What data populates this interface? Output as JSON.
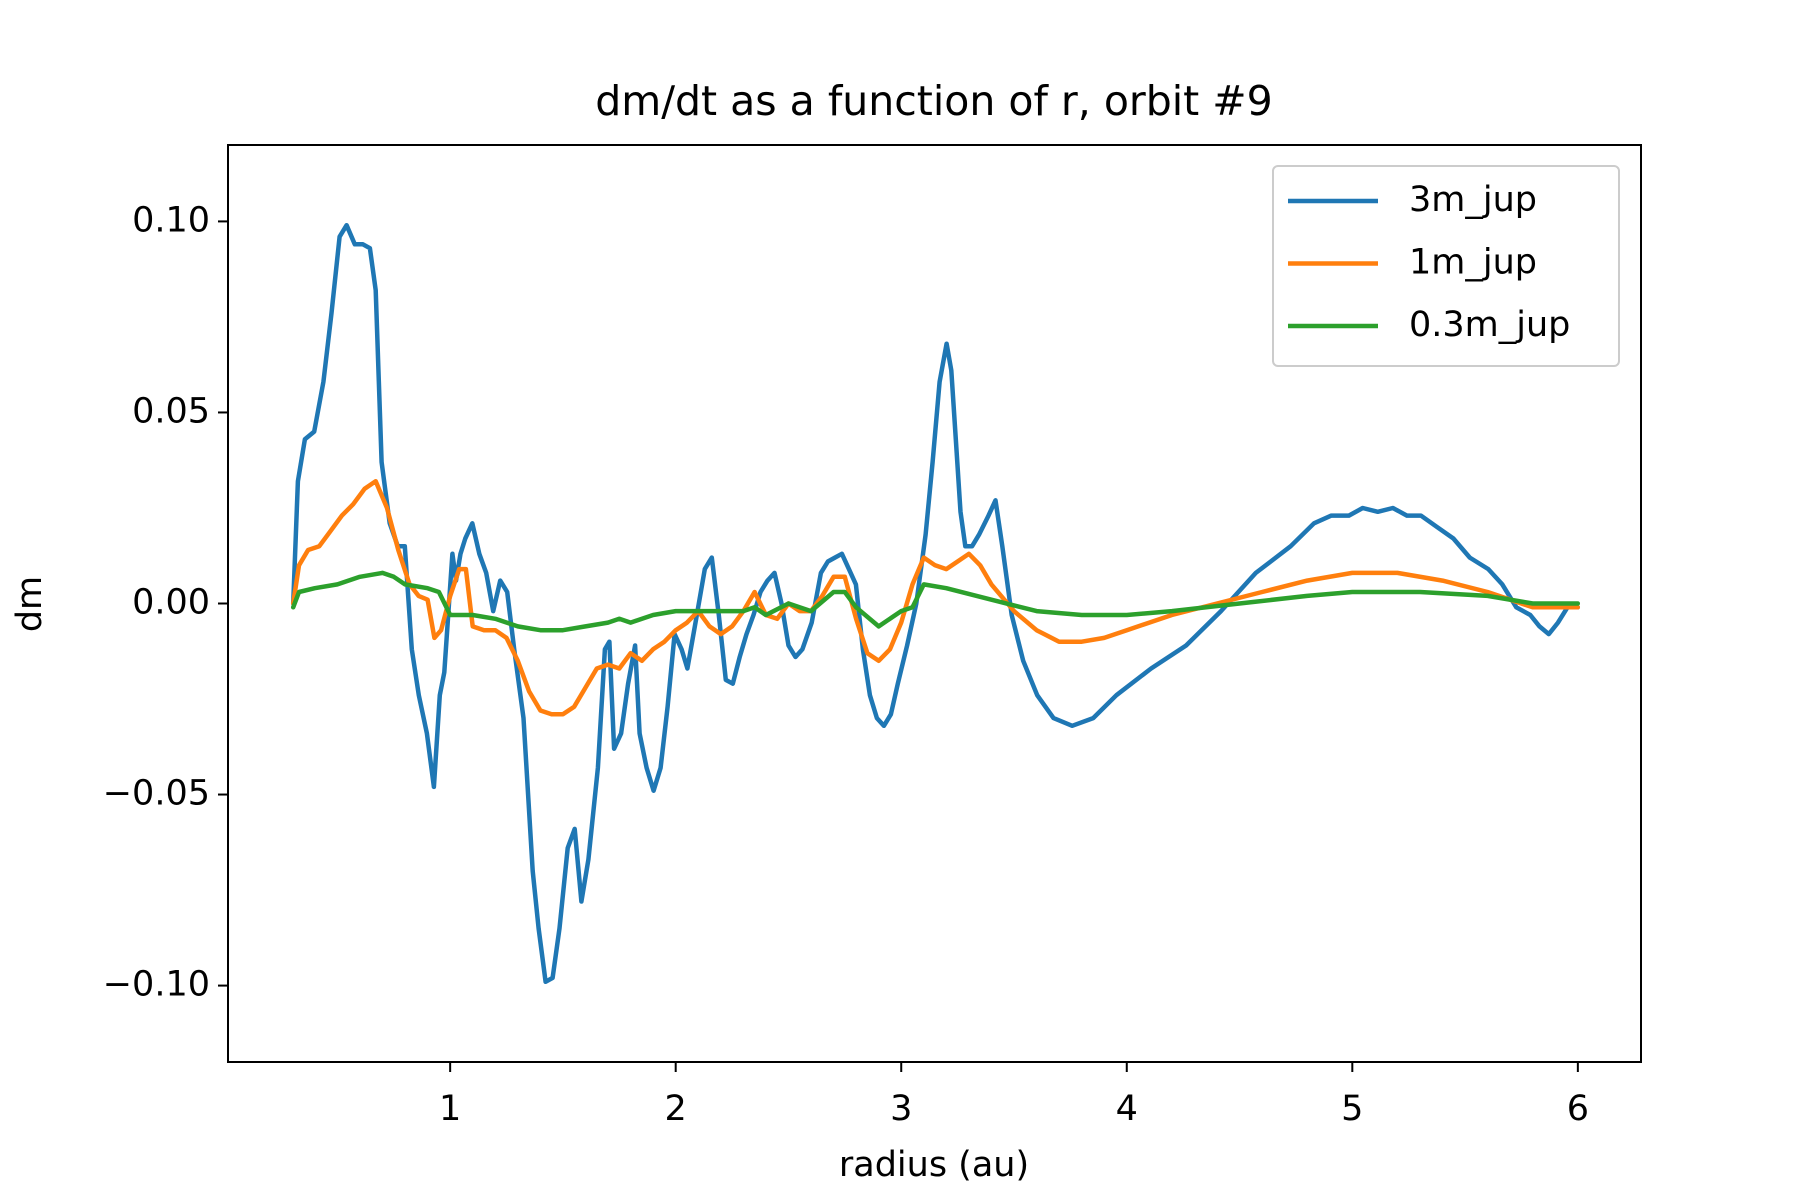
{
  "chart_data": {
    "type": "line",
    "title": "dm/dt as a function of r, orbit #9",
    "x_label": "radius (au)",
    "y_label": "dm",
    "xlim": [
      0.015,
      6.28
    ],
    "ylim": [
      -0.12,
      0.12
    ],
    "xticks": [
      1,
      2,
      3,
      4,
      5,
      6
    ],
    "yticks": [
      {
        "value": -0.1,
        "label": "−0.10"
      },
      {
        "value": -0.05,
        "label": "−0.05"
      },
      {
        "value": 0,
        "label": "0.00"
      },
      {
        "value": 0.05,
        "label": "0.05"
      },
      {
        "value": 0.1,
        "label": "0.10"
      }
    ],
    "legend": "upper right",
    "grid": false,
    "series": [
      {
        "name": "3m_jup",
        "color": "#1f77b4",
        "x": [
          0.304,
          0.325,
          0.356,
          0.397,
          0.438,
          0.474,
          0.51,
          0.541,
          0.577,
          0.613,
          0.644,
          0.67,
          0.696,
          0.732,
          0.768,
          0.799,
          0.83,
          0.861,
          0.897,
          0.928,
          0.954,
          0.974,
          0.995,
          1.01,
          1.026,
          1.046,
          1.067,
          1.098,
          1.129,
          1.16,
          1.191,
          1.222,
          1.253,
          1.284,
          1.325,
          1.366,
          1.392,
          1.423,
          1.454,
          1.485,
          1.521,
          1.552,
          1.582,
          1.613,
          1.655,
          1.686,
          1.706,
          1.727,
          1.758,
          1.789,
          1.82,
          1.84,
          1.871,
          1.902,
          1.933,
          1.964,
          1.995,
          2.026,
          2.052,
          2.088,
          2.129,
          2.16,
          2.191,
          2.222,
          2.253,
          2.284,
          2.314,
          2.345,
          2.376,
          2.407,
          2.438,
          2.469,
          2.5,
          2.531,
          2.562,
          2.603,
          2.644,
          2.675,
          2.706,
          2.737,
          2.768,
          2.799,
          2.83,
          2.861,
          2.892,
          2.923,
          2.954,
          2.985,
          3.026,
          3.067,
          3.108,
          3.139,
          3.17,
          3.201,
          3.222,
          3.242,
          3.263,
          3.284,
          3.314,
          3.345,
          3.387,
          3.418,
          3.448,
          3.49,
          3.541,
          3.603,
          3.675,
          3.758,
          3.851,
          3.954,
          4.108,
          4.263,
          4.418,
          4.572,
          4.727,
          4.83,
          4.907,
          4.985,
          5.046,
          5.113,
          5.18,
          5.242,
          5.304,
          5.376,
          5.448,
          5.521,
          5.603,
          5.665,
          5.727,
          5.789,
          5.83,
          5.871,
          5.912,
          5.954,
          6.0
        ],
        "values": [
          0,
          0.032,
          0.043,
          0.045,
          0.058,
          0.076,
          0.096,
          0.099,
          0.094,
          0.094,
          0.093,
          0.082,
          0.037,
          0.021,
          0.015,
          0.015,
          -0.012,
          -0.024,
          -0.034,
          -0.048,
          -0.024,
          -0.018,
          0,
          0.013,
          0.006,
          0.013,
          0.017,
          0.021,
          0.013,
          0.008,
          -0.002,
          0.006,
          0.003,
          -0.012,
          -0.03,
          -0.07,
          -0.085,
          -0.099,
          -0.098,
          -0.085,
          -0.064,
          -0.059,
          -0.078,
          -0.067,
          -0.043,
          -0.012,
          -0.01,
          -0.038,
          -0.034,
          -0.021,
          -0.011,
          -0.034,
          -0.043,
          -0.049,
          -0.043,
          -0.027,
          -0.008,
          -0.012,
          -0.017,
          -0.005,
          0.009,
          0.012,
          -0.003,
          -0.02,
          -0.021,
          -0.014,
          -0.008,
          -0.003,
          0.003,
          0.006,
          0.008,
          0,
          -0.011,
          -0.014,
          -0.012,
          -0.005,
          0.008,
          0.011,
          0.012,
          0.013,
          0.009,
          0.005,
          -0.012,
          -0.024,
          -0.03,
          -0.032,
          -0.029,
          -0.021,
          -0.011,
          0,
          0.018,
          0.037,
          0.058,
          0.068,
          0.061,
          0.043,
          0.024,
          0.015,
          0.015,
          0.018,
          0.023,
          0.027,
          0.015,
          -0.003,
          -0.015,
          -0.024,
          -0.03,
          -0.032,
          -0.03,
          -0.024,
          -0.017,
          -0.011,
          -0.002,
          0.008,
          0.015,
          0.021,
          0.023,
          0.023,
          0.025,
          0.024,
          0.025,
          0.023,
          0.023,
          0.02,
          0.017,
          0.012,
          0.009,
          0.005,
          -0.001,
          -0.003,
          -0.006,
          -0.008,
          -0.005,
          -0.001,
          -0.001
        ]
      },
      {
        "name": "1m_jup",
        "color": "#ff7f0e",
        "x": [
          0.304,
          0.33,
          0.37,
          0.42,
          0.47,
          0.52,
          0.57,
          0.62,
          0.67,
          0.72,
          0.77,
          0.82,
          0.86,
          0.9,
          0.93,
          0.96,
          1.0,
          1.04,
          1.07,
          1.1,
          1.15,
          1.2,
          1.25,
          1.3,
          1.35,
          1.4,
          1.45,
          1.5,
          1.55,
          1.6,
          1.65,
          1.7,
          1.75,
          1.8,
          1.85,
          1.9,
          1.95,
          2.0,
          2.05,
          2.1,
          2.15,
          2.2,
          2.25,
          2.3,
          2.35,
          2.4,
          2.45,
          2.5,
          2.55,
          2.6,
          2.65,
          2.7,
          2.75,
          2.8,
          2.85,
          2.9,
          2.95,
          3.0,
          3.05,
          3.1,
          3.15,
          3.2,
          3.25,
          3.3,
          3.35,
          3.4,
          3.5,
          3.6,
          3.7,
          3.8,
          3.9,
          4.0,
          4.2,
          4.4,
          4.6,
          4.8,
          5.0,
          5.1,
          5.2,
          5.4,
          5.6,
          5.8,
          6.0
        ],
        "values": [
          0,
          0.01,
          0.014,
          0.015,
          0.019,
          0.023,
          0.026,
          0.03,
          0.032,
          0.025,
          0.014,
          0.005,
          0.002,
          0.001,
          -0.009,
          -0.007,
          0.002,
          0.009,
          0.009,
          -0.006,
          -0.007,
          -0.007,
          -0.009,
          -0.015,
          -0.023,
          -0.028,
          -0.029,
          -0.029,
          -0.027,
          -0.022,
          -0.017,
          -0.016,
          -0.017,
          -0.013,
          -0.015,
          -0.012,
          -0.01,
          -0.007,
          -0.005,
          -0.002,
          -0.006,
          -0.008,
          -0.006,
          -0.002,
          0.003,
          -0.003,
          -0.004,
          0,
          -0.002,
          -0.002,
          0.002,
          0.007,
          0.007,
          -0.004,
          -0.013,
          -0.015,
          -0.012,
          -0.005,
          0.005,
          0.012,
          0.01,
          0.009,
          0.011,
          0.013,
          0.01,
          0.005,
          -0.002,
          -0.007,
          -0.01,
          -0.01,
          -0.009,
          -0.007,
          -0.003,
          0,
          0.003,
          0.006,
          0.008,
          0.008,
          0.008,
          0.006,
          0.003,
          -0.001,
          -0.001
        ]
      },
      {
        "name": "0.3m_jup",
        "color": "#2ca02c",
        "x": [
          0.304,
          0.33,
          0.4,
          0.5,
          0.6,
          0.7,
          0.75,
          0.8,
          0.9,
          0.95,
          1.0,
          1.1,
          1.2,
          1.3,
          1.4,
          1.5,
          1.6,
          1.7,
          1.75,
          1.8,
          1.9,
          2.0,
          2.1,
          2.2,
          2.3,
          2.35,
          2.4,
          2.5,
          2.6,
          2.7,
          2.75,
          2.8,
          2.9,
          3.0,
          3.05,
          3.1,
          3.2,
          3.4,
          3.6,
          3.8,
          4.0,
          4.2,
          4.5,
          4.8,
          5.0,
          5.3,
          5.6,
          5.8,
          6.0
        ],
        "values": [
          -0.001,
          0.003,
          0.004,
          0.005,
          0.007,
          0.008,
          0.007,
          0.005,
          0.004,
          0.003,
          -0.003,
          -0.003,
          -0.004,
          -0.006,
          -0.007,
          -0.007,
          -0.006,
          -0.005,
          -0.004,
          -0.005,
          -0.003,
          -0.002,
          -0.002,
          -0.002,
          -0.002,
          -0.001,
          -0.003,
          0,
          -0.002,
          0.003,
          0.003,
          -0.001,
          -0.006,
          -0.002,
          -0.001,
          0.005,
          0.004,
          0.001,
          -0.002,
          -0.003,
          -0.003,
          -0.002,
          0,
          0.002,
          0.003,
          0.003,
          0.002,
          0,
          0
        ]
      }
    ]
  }
}
